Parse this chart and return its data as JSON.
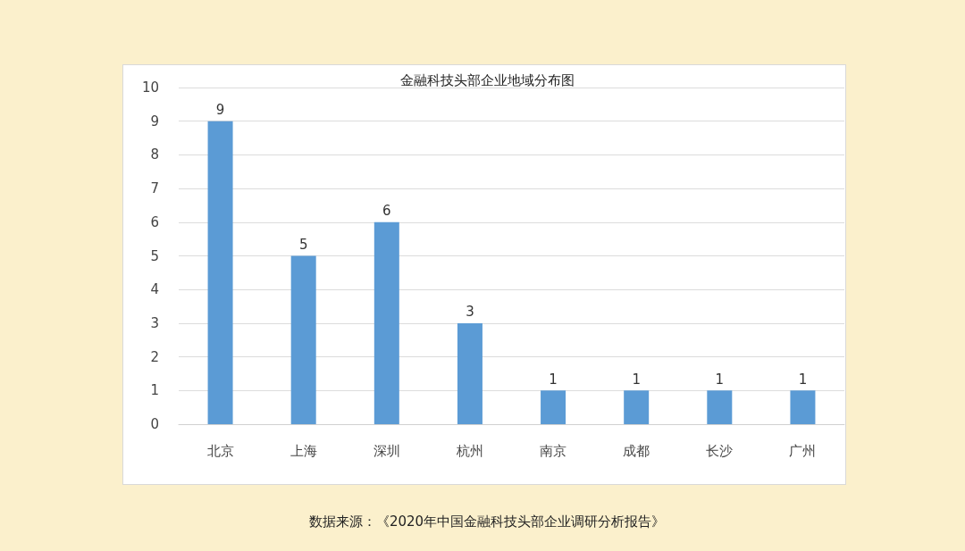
{
  "chart_data": {
    "type": "bar",
    "title": "金融科技头部企业地域分布图",
    "categories": [
      "北京",
      "上海",
      "深圳",
      "杭州",
      "南京",
      "成都",
      "长沙",
      "广州"
    ],
    "values": [
      9,
      5,
      6,
      3,
      1,
      1,
      1,
      1
    ],
    "color": "#5b9bd5",
    "ylim": [
      0,
      10
    ],
    "yticks": [
      0,
      1,
      2,
      3,
      4,
      5,
      6,
      7,
      8,
      9,
      10
    ],
    "grid": "y",
    "data_labels": true,
    "annotations": [
      "数据来源：《2020年中国金融科技头部企业调研分析报告》"
    ]
  }
}
